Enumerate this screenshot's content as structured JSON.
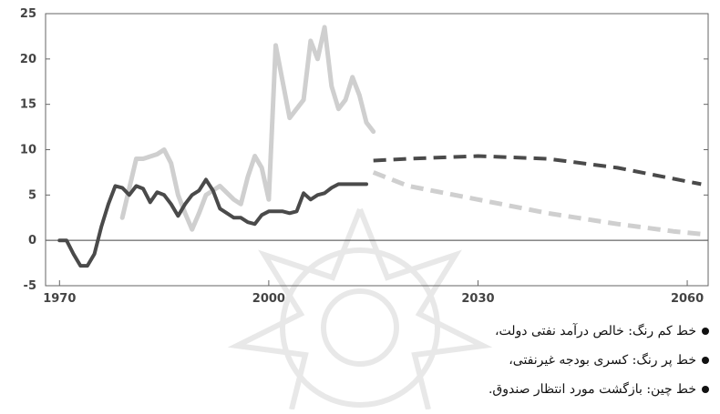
{
  "chart_data": {
    "type": "line",
    "title": "",
    "xlabel": "",
    "ylabel": "",
    "xlim": [
      1968,
      2063
    ],
    "ylim": [
      -5,
      25
    ],
    "x_ticks": [
      "1970",
      "2000",
      "2030",
      "2060"
    ],
    "y_ticks": [
      "25",
      "20",
      "15",
      "10",
      "5",
      "0",
      "-5"
    ],
    "grid": false,
    "zero_line": true,
    "series": [
      {
        "color": "#cfcfcf",
        "style": "solid",
        "x": [
          1979,
          1981,
          1982,
          1984,
          1985,
          1986,
          1987,
          1988,
          1989,
          1990,
          1991,
          1993,
          1995,
          1996,
          1997,
          1998,
          1999,
          2000,
          2001,
          2003,
          2005,
          2006,
          2007,
          2008,
          2009,
          2010,
          2011,
          2012,
          2013,
          2014,
          2015
        ],
        "values": [
          2.5,
          9,
          9,
          9.5,
          10,
          8.5,
          5,
          3,
          1.2,
          3,
          5,
          6,
          4.5,
          4,
          7,
          9.3,
          8,
          4.5,
          21.5,
          13.5,
          15.5,
          22,
          20,
          23.5,
          17,
          14.5,
          15.5,
          18,
          16,
          13,
          12
        ]
      },
      {
        "color": "#cfcfcf",
        "style": "dashed",
        "x": [
          2015,
          2020,
          2030,
          2040,
          2050,
          2058,
          2062
        ],
        "values": [
          7.5,
          6,
          4.5,
          3,
          1.8,
          1,
          0.7
        ]
      },
      {
        "color": "#4a4a4a",
        "style": "solid",
        "x": [
          1970,
          1971,
          1972,
          1973,
          1974,
          1975,
          1976,
          1977,
          1978,
          1979,
          1980,
          1981,
          1982,
          1983,
          1984,
          1985,
          1986,
          1987,
          1988,
          1989,
          1990,
          1991,
          1992,
          1993,
          1994,
          1995,
          1996,
          1997,
          1998,
          1999,
          2000,
          2001,
          2002,
          2003,
          2004,
          2005,
          2006,
          2007,
          2008,
          2009,
          2010,
          2011,
          2012,
          2013,
          2014
        ],
        "values": [
          0,
          0,
          -1.5,
          -2.8,
          -2.8,
          -1.5,
          1.5,
          4,
          6,
          5.8,
          5,
          6,
          5.7,
          4.2,
          5.3,
          5,
          4,
          2.7,
          4,
          5,
          5.5,
          6.7,
          5.5,
          3.5,
          3,
          2.5,
          2.5,
          2,
          1.8,
          2.8,
          3.2,
          3.2,
          3.2,
          3,
          3.2,
          5.2,
          4.5,
          5,
          5.2,
          5.8,
          6.2,
          6.2,
          6.2,
          6.2,
          6.2
        ]
      },
      {
        "color": "#4a4a4a",
        "style": "dashed",
        "x": [
          2015,
          2020,
          2030,
          2040,
          2050,
          2058,
          2062
        ],
        "values": [
          8.8,
          9,
          9.3,
          9,
          8,
          6.8,
          6.2
        ]
      }
    ]
  },
  "legend": [
    "خط کم رنگ: خالص درآمد نفتی دولت،",
    "خط پر رنگ: کسری بودجه غیرنفتی،",
    "خط چین: بازگشت مورد انتظار صندوق."
  ]
}
